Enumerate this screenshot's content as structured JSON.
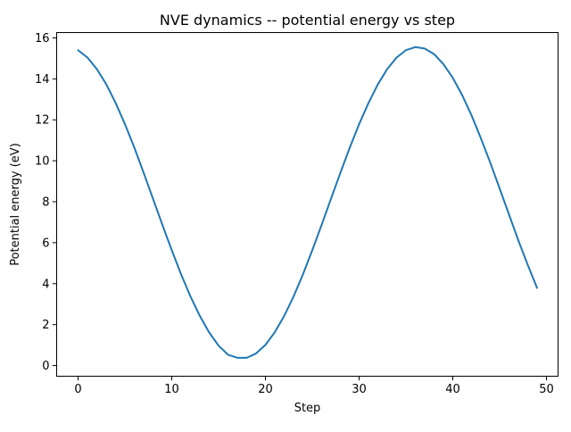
{
  "chart_data": {
    "type": "line",
    "title": "NVE dynamics -- potential energy vs step",
    "xlabel": "Step",
    "ylabel": "Potential energy (eV)",
    "x": [
      0,
      1,
      2,
      3,
      4,
      5,
      6,
      7,
      8,
      9,
      10,
      11,
      12,
      13,
      14,
      15,
      16,
      17,
      18,
      19,
      20,
      21,
      22,
      23,
      24,
      25,
      26,
      27,
      28,
      29,
      30,
      31,
      32,
      33,
      34,
      35,
      36,
      37,
      38,
      39,
      40,
      41,
      42,
      43,
      44,
      45,
      46,
      47,
      48,
      49
    ],
    "values": [
      15.4,
      15.04,
      14.48,
      13.74,
      12.83,
      11.79,
      10.65,
      9.41,
      8.14,
      6.87,
      5.63,
      4.45,
      3.37,
      2.42,
      1.61,
      0.97,
      0.53,
      0.38,
      0.38,
      0.59,
      1.01,
      1.63,
      2.42,
      3.37,
      4.45,
      5.63,
      6.87,
      8.15,
      9.41,
      10.64,
      11.79,
      12.82,
      13.73,
      14.48,
      15.04,
      15.4,
      15.55,
      15.48,
      15.21,
      14.72,
      14.05,
      13.21,
      12.22,
      11.1,
      9.91,
      8.65,
      7.38,
      6.11,
      4.92,
      3.79
    ],
    "xticks": [
      0,
      10,
      20,
      30,
      40,
      50
    ],
    "yticks": [
      0,
      2,
      4,
      6,
      8,
      10,
      12,
      14,
      16
    ],
    "xlim": [
      -2.29,
      51.24
    ],
    "ylim": [
      -0.52,
      16.26
    ],
    "line_color": "#1f77b4",
    "axis_color": "#000000",
    "background": "#ffffff",
    "grid": false,
    "legend": null
  }
}
